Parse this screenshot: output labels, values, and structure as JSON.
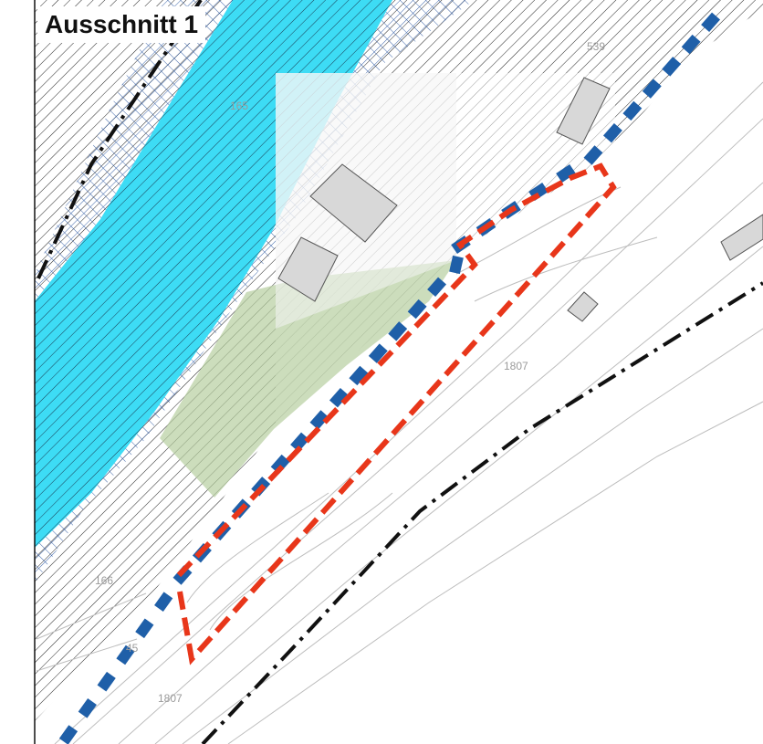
{
  "map": {
    "title": "Ausschnitt 1",
    "parcel_labels": {
      "p539": "539",
      "p165_top": "165",
      "p1807_mid": "1807",
      "p166": "166",
      "p45": "45",
      "p1807_bottom": "1807"
    },
    "colors": {
      "water": "#3ddcf5",
      "green_area": "#b7cfa0",
      "boundary_red": "#e8361a",
      "boundary_blue": "#1f5fa8",
      "hatch": "#222222",
      "crosshatch_blue": "#2a56a0",
      "building_fill": "#d8d8d8"
    }
  }
}
